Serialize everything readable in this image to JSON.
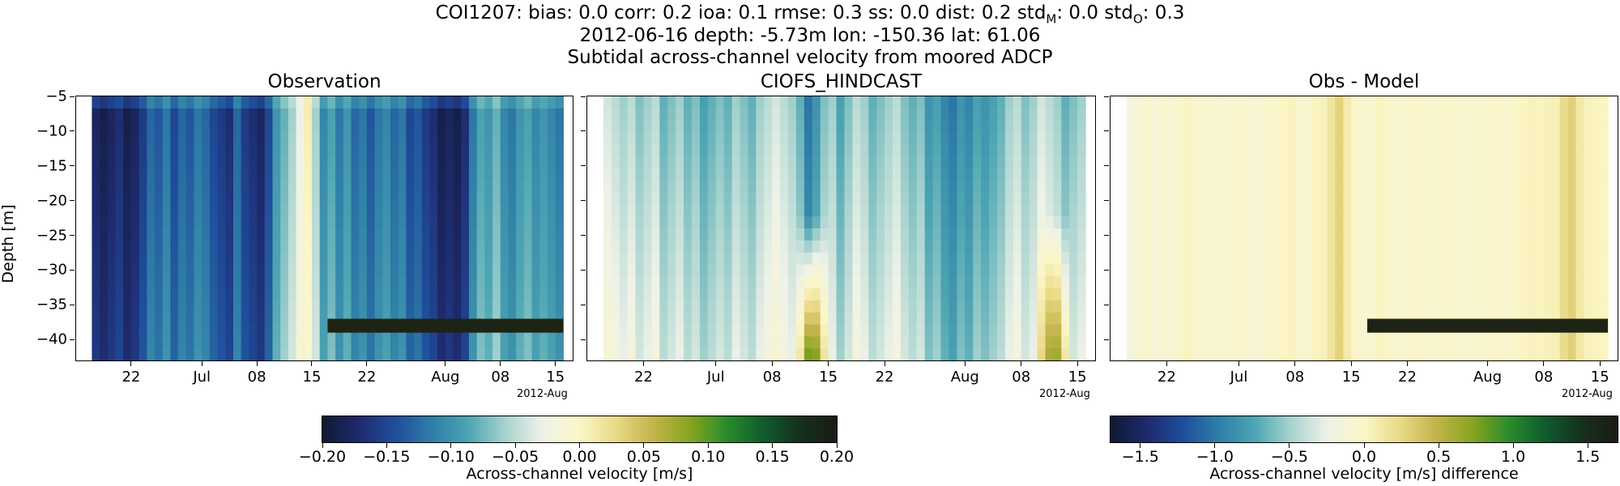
{
  "header": {
    "line1_prefix": "COI1207: bias: 0.0  corr: 0.2  ioa: 0.1  rmse: 0.3  ss: 0.0  dist: 0.2  std",
    "line1_sub_m": "M",
    "line1_mid": ": 0.0  std",
    "line1_sub_o": "O",
    "line1_suffix": ": 0.3",
    "line2": "2012-06-16 depth: -5.73m lon: -150.36 lat: 61.06",
    "line3": "Subtidal across-channel velocity from moored ADCP"
  },
  "colors": {
    "cmap": [
      "#0f1a33",
      "#1f2a6e",
      "#1f4e9c",
      "#2f7fa8",
      "#4ea6b3",
      "#a9d4cf",
      "#eff2e8",
      "#fcf6c6",
      "#e9d986",
      "#c2b44a",
      "#87a41f",
      "#2b8c2c",
      "#0f5c2e",
      "#16301e",
      "#1a1c12"
    ],
    "flag_bar": "#1e2415"
  },
  "chart_data": [
    {
      "type": "heatmap",
      "title": "Observation",
      "ylabel": "Depth [m]",
      "xlabel": "",
      "x_range": [
        "2012-06-17",
        "2012-08-16"
      ],
      "x_ticks": [
        "22",
        "Jul",
        "08",
        "15",
        "22",
        "Aug",
        "08",
        "15"
      ],
      "x_offset_label": "2012-Aug",
      "y_range": [
        -43,
        -5
      ],
      "y_ticks": [
        "-5",
        "-10",
        "-15",
        "-20",
        "-25",
        "-30",
        "-35",
        "-40"
      ],
      "clim": [
        -0.2,
        0.2
      ],
      "columns": [
        -0.18,
        -0.19,
        -0.18,
        -0.17,
        -0.19,
        -0.18,
        -0.16,
        -0.13,
        -0.14,
        -0.12,
        -0.15,
        -0.13,
        -0.14,
        -0.12,
        -0.13,
        -0.15,
        -0.16,
        -0.17,
        -0.13,
        -0.16,
        -0.17,
        -0.18,
        -0.15,
        -0.1,
        -0.08,
        -0.06,
        -0.03,
        0.01,
        -0.06,
        -0.11,
        -0.09,
        -0.12,
        -0.1,
        -0.13,
        -0.12,
        -0.14,
        -0.12,
        -0.11,
        -0.13,
        -0.12,
        -0.15,
        -0.14,
        -0.16,
        -0.17,
        -0.19,
        -0.18,
        -0.19,
        -0.17,
        -0.12,
        -0.09,
        -0.1,
        -0.08,
        -0.11,
        -0.12,
        -0.1,
        -0.09,
        -0.11,
        -0.1,
        -0.11,
        -0.12
      ],
      "depth_gradient": 0.04,
      "missing_bar": {
        "x_start": "2012-07-17",
        "x_end": "2012-08-16",
        "y_top": -37,
        "y_bottom": -39
      }
    },
    {
      "type": "heatmap",
      "title": "CIOFS_HINDCAST",
      "ylabel": "",
      "xlabel": "",
      "x_range": [
        "2012-06-17",
        "2012-08-16"
      ],
      "x_ticks": [
        "22",
        "Jul",
        "08",
        "15",
        "22",
        "Aug",
        "08",
        "15"
      ],
      "x_offset_label": "2012-Aug",
      "y_range": [
        -43,
        -5
      ],
      "y_ticks": [
        "-5",
        "-10",
        "-15",
        "-20",
        "-25",
        "-30",
        "-35",
        "-40"
      ],
      "clim": [
        -0.2,
        0.2
      ],
      "columns": [
        -0.04,
        -0.05,
        -0.06,
        -0.05,
        -0.07,
        -0.06,
        -0.05,
        -0.08,
        -0.07,
        -0.06,
        -0.08,
        -0.07,
        -0.09,
        -0.08,
        -0.07,
        -0.08,
        -0.06,
        -0.07,
        -0.08,
        -0.06,
        -0.05,
        -0.04,
        -0.05,
        -0.06,
        -0.08,
        -0.12,
        -0.1,
        -0.07,
        -0.06,
        -0.09,
        -0.07,
        -0.05,
        -0.06,
        -0.08,
        -0.07,
        -0.06,
        -0.05,
        -0.07,
        -0.08,
        -0.07,
        -0.1,
        -0.09,
        -0.11,
        -0.12,
        -0.1,
        -0.11,
        -0.09,
        -0.1,
        -0.09,
        -0.08,
        -0.06,
        -0.05,
        -0.07,
        -0.06,
        -0.04,
        -0.05,
        -0.06,
        -0.08,
        -0.07,
        -0.06
      ],
      "depth_gradient": 0.06,
      "bottom_warm": [
        {
          "x": "2012-07-13",
          "value": 0.05
        },
        {
          "x": "2012-08-12",
          "value": 0.05
        }
      ]
    },
    {
      "type": "heatmap",
      "title": "Obs - Model",
      "ylabel": "",
      "xlabel": "",
      "x_range": [
        "2012-06-17",
        "2012-08-16"
      ],
      "x_ticks": [
        "22",
        "Jul",
        "08",
        "15",
        "22",
        "Aug",
        "08",
        "15"
      ],
      "x_offset_label": "2012-Aug",
      "y_range": [
        -43,
        -5
      ],
      "y_ticks": [
        "-5",
        "-10",
        "-15",
        "-20",
        "-25",
        "-30",
        "-35",
        "-40"
      ],
      "clim": [
        -1.7,
        1.7
      ],
      "columns": [
        -0.15,
        -0.1,
        -0.05,
        -0.12,
        -0.08,
        -0.1,
        -0.04,
        0.02,
        -0.06,
        -0.08,
        -0.05,
        -0.1,
        -0.07,
        -0.04,
        -0.06,
        -0.09,
        -0.1,
        -0.05,
        -0.02,
        0.0,
        0.03,
        -0.05,
        -0.07,
        0.02,
        0.04,
        0.15,
        0.28,
        0.1,
        -0.04,
        -0.08,
        -0.06,
        0.02,
        -0.03,
        -0.05,
        -0.07,
        -0.04,
        -0.02,
        -0.05,
        -0.06,
        -0.03,
        -0.05,
        -0.04,
        -0.08,
        -0.06,
        -0.05,
        -0.02,
        -0.04,
        -0.06,
        -0.03,
        0.01,
        0.03,
        0.02,
        0.04,
        0.06,
        0.22,
        0.3,
        0.12,
        0.04,
        0.02,
        0.01
      ],
      "depth_gradient": 0.0,
      "missing_bar": {
        "x_start": "2012-07-17",
        "x_end": "2012-08-16",
        "y_top": -37,
        "y_bottom": -39
      }
    }
  ],
  "colorbars": [
    {
      "label": "Across-channel velocity [m/s]",
      "ticks": [
        "−0.20",
        "−0.15",
        "−0.10",
        "−0.05",
        "0.00",
        "0.05",
        "0.10",
        "0.15",
        "0.20"
      ],
      "range": [
        -0.2,
        0.2
      ]
    },
    {
      "label": "Across-channel velocity [m/s] difference",
      "ticks": [
        "−1.5",
        "−1.0",
        "−0.5",
        "0.0",
        "0.5",
        "1.0",
        "1.5"
      ],
      "tick_values": [
        -1.5,
        -1.0,
        -0.5,
        0.0,
        0.5,
        1.0,
        1.5
      ],
      "range": [
        -1.7,
        1.7
      ]
    }
  ]
}
